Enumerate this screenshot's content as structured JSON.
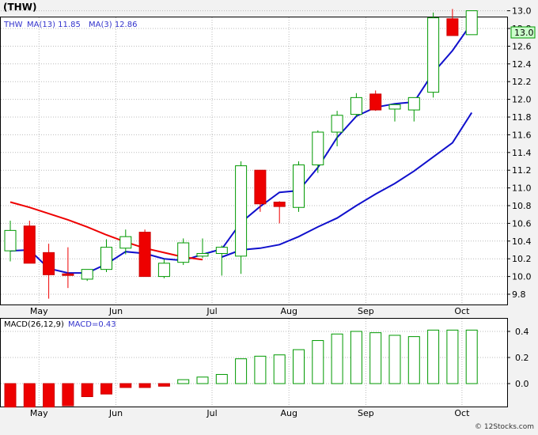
{
  "title": "(THW)",
  "footer": "© 12Stocks.com",
  "colors": {
    "up": "#009900",
    "down": "#ee0000",
    "ma_fast": "#ee0000",
    "ma_slow": "#1010cc",
    "grid": "#bbbbbb",
    "axis": "#000000",
    "legend_ma": "#3333cc",
    "price_box": "#ccffcc"
  },
  "price_panel": {
    "legend": {
      "ticker": "THW",
      "ma13": "MA(13)  11.85",
      "ma3": "MA(3)  12.86"
    },
    "last_price": "13.0"
  },
  "macd_panel": {
    "legend": {
      "label": "MACD(26,12,9)",
      "value": "MACD=0.43"
    }
  },
  "chart_data": [
    {
      "type": "candlestick",
      "panel": "price",
      "x_tick_labels": [
        "May",
        "Jun",
        "Jul",
        "Aug",
        "Sep",
        "Oct"
      ],
      "y_tick_labels": [
        "9.8",
        "10.0",
        "10.2",
        "10.4",
        "10.6",
        "10.8",
        "11.0",
        "11.2",
        "11.4",
        "11.6",
        "11.8",
        "12.0",
        "12.2",
        "12.4",
        "12.6",
        "12.8",
        "13.0"
      ],
      "ylim": [
        9.7,
        13.1
      ],
      "grid": true,
      "candles": [
        {
          "o": 10.29,
          "h": 10.63,
          "l": 10.17,
          "c": 10.52
        },
        {
          "o": 10.57,
          "h": 10.63,
          "l": 10.15,
          "c": 10.15
        },
        {
          "o": 10.27,
          "h": 10.37,
          "l": 9.75,
          "c": 10.02
        },
        {
          "o": 10.03,
          "h": 10.33,
          "l": 9.87,
          "c": 10.02
        },
        {
          "o": 9.97,
          "h": 10.08,
          "l": 9.95,
          "c": 10.08
        },
        {
          "o": 10.08,
          "h": 10.42,
          "l": 10.05,
          "c": 10.33
        },
        {
          "o": 10.32,
          "h": 10.53,
          "l": 10.25,
          "c": 10.45
        },
        {
          "o": 10.5,
          "h": 10.53,
          "l": 10.0,
          "c": 10.0
        },
        {
          "o": 10.0,
          "h": 10.2,
          "l": 9.98,
          "c": 10.15
        },
        {
          "o": 10.16,
          "h": 10.43,
          "l": 10.13,
          "c": 10.38
        },
        {
          "o": 10.23,
          "h": 10.43,
          "l": 10.21,
          "c": 10.26
        },
        {
          "o": 10.26,
          "h": 10.35,
          "l": 10.01,
          "c": 10.33
        },
        {
          "o": 10.23,
          "h": 11.3,
          "l": 10.03,
          "c": 11.25
        },
        {
          "o": 11.2,
          "h": 11.2,
          "l": 10.73,
          "c": 10.82
        },
        {
          "o": 10.84,
          "h": 10.85,
          "l": 10.6,
          "c": 10.79
        },
        {
          "o": 10.78,
          "h": 11.3,
          "l": 10.73,
          "c": 11.26
        },
        {
          "o": 11.26,
          "h": 11.65,
          "l": 11.17,
          "c": 11.63
        },
        {
          "o": 11.63,
          "h": 11.87,
          "l": 11.47,
          "c": 11.82
        },
        {
          "o": 11.83,
          "h": 12.07,
          "l": 11.8,
          "c": 12.02
        },
        {
          "o": 12.06,
          "h": 12.1,
          "l": 11.87,
          "c": 11.88
        },
        {
          "o": 11.89,
          "h": 11.95,
          "l": 11.75,
          "c": 11.94
        },
        {
          "o": 11.88,
          "h": 12.02,
          "l": 11.75,
          "c": 12.02
        },
        {
          "o": 12.08,
          "h": 12.98,
          "l": 12.02,
          "c": 12.92
        },
        {
          "o": 12.91,
          "h": 13.02,
          "l": 12.72,
          "c": 12.72
        },
        {
          "o": 12.73,
          "h": 13.0,
          "l": 12.73,
          "c": 13.0
        }
      ],
      "series": [
        {
          "name": "MA(13)",
          "values": [
            null,
            null,
            null,
            null,
            null,
            null,
            null,
            null,
            null,
            null,
            null,
            10.22,
            10.3,
            10.32,
            10.36,
            10.45,
            10.56,
            10.66,
            10.8,
            10.93,
            11.05,
            11.19,
            11.35,
            11.51,
            11.85
          ]
        },
        {
          "name": "MA(3)",
          "values": [
            10.29,
            10.3,
            10.09,
            10.04,
            10.04,
            10.14,
            10.28,
            10.26,
            10.2,
            10.18,
            10.25,
            10.31,
            10.61,
            10.79,
            10.95,
            10.97,
            11.23,
            11.57,
            11.81,
            11.91,
            11.95,
            11.97,
            12.3,
            12.55,
            12.86
          ]
        },
        {
          "name": "early moving average (red)",
          "values": [
            10.84,
            10.78,
            10.71,
            10.64,
            10.56,
            10.47,
            10.39,
            10.32,
            10.27,
            10.22,
            10.19,
            null,
            null,
            null,
            null,
            null,
            null,
            null,
            null,
            null,
            null,
            null,
            null,
            null,
            null
          ]
        }
      ]
    },
    {
      "type": "bar",
      "panel": "macd",
      "x_tick_labels": [
        "May",
        "Jun",
        "Jul",
        "Aug",
        "Sep",
        "Oct"
      ],
      "y_tick_labels": [
        "0.0",
        "0.2",
        "0.4"
      ],
      "ylim": [
        -0.18,
        0.5
      ],
      "grid": true,
      "values": [
        -0.18,
        -0.18,
        -0.18,
        -0.17,
        -0.1,
        -0.08,
        -0.03,
        -0.03,
        -0.02,
        0.03,
        0.05,
        0.07,
        0.19,
        0.21,
        0.22,
        0.26,
        0.33,
        0.38,
        0.4,
        0.39,
        0.37,
        0.36,
        0.41,
        0.41,
        0.41
      ]
    }
  ]
}
